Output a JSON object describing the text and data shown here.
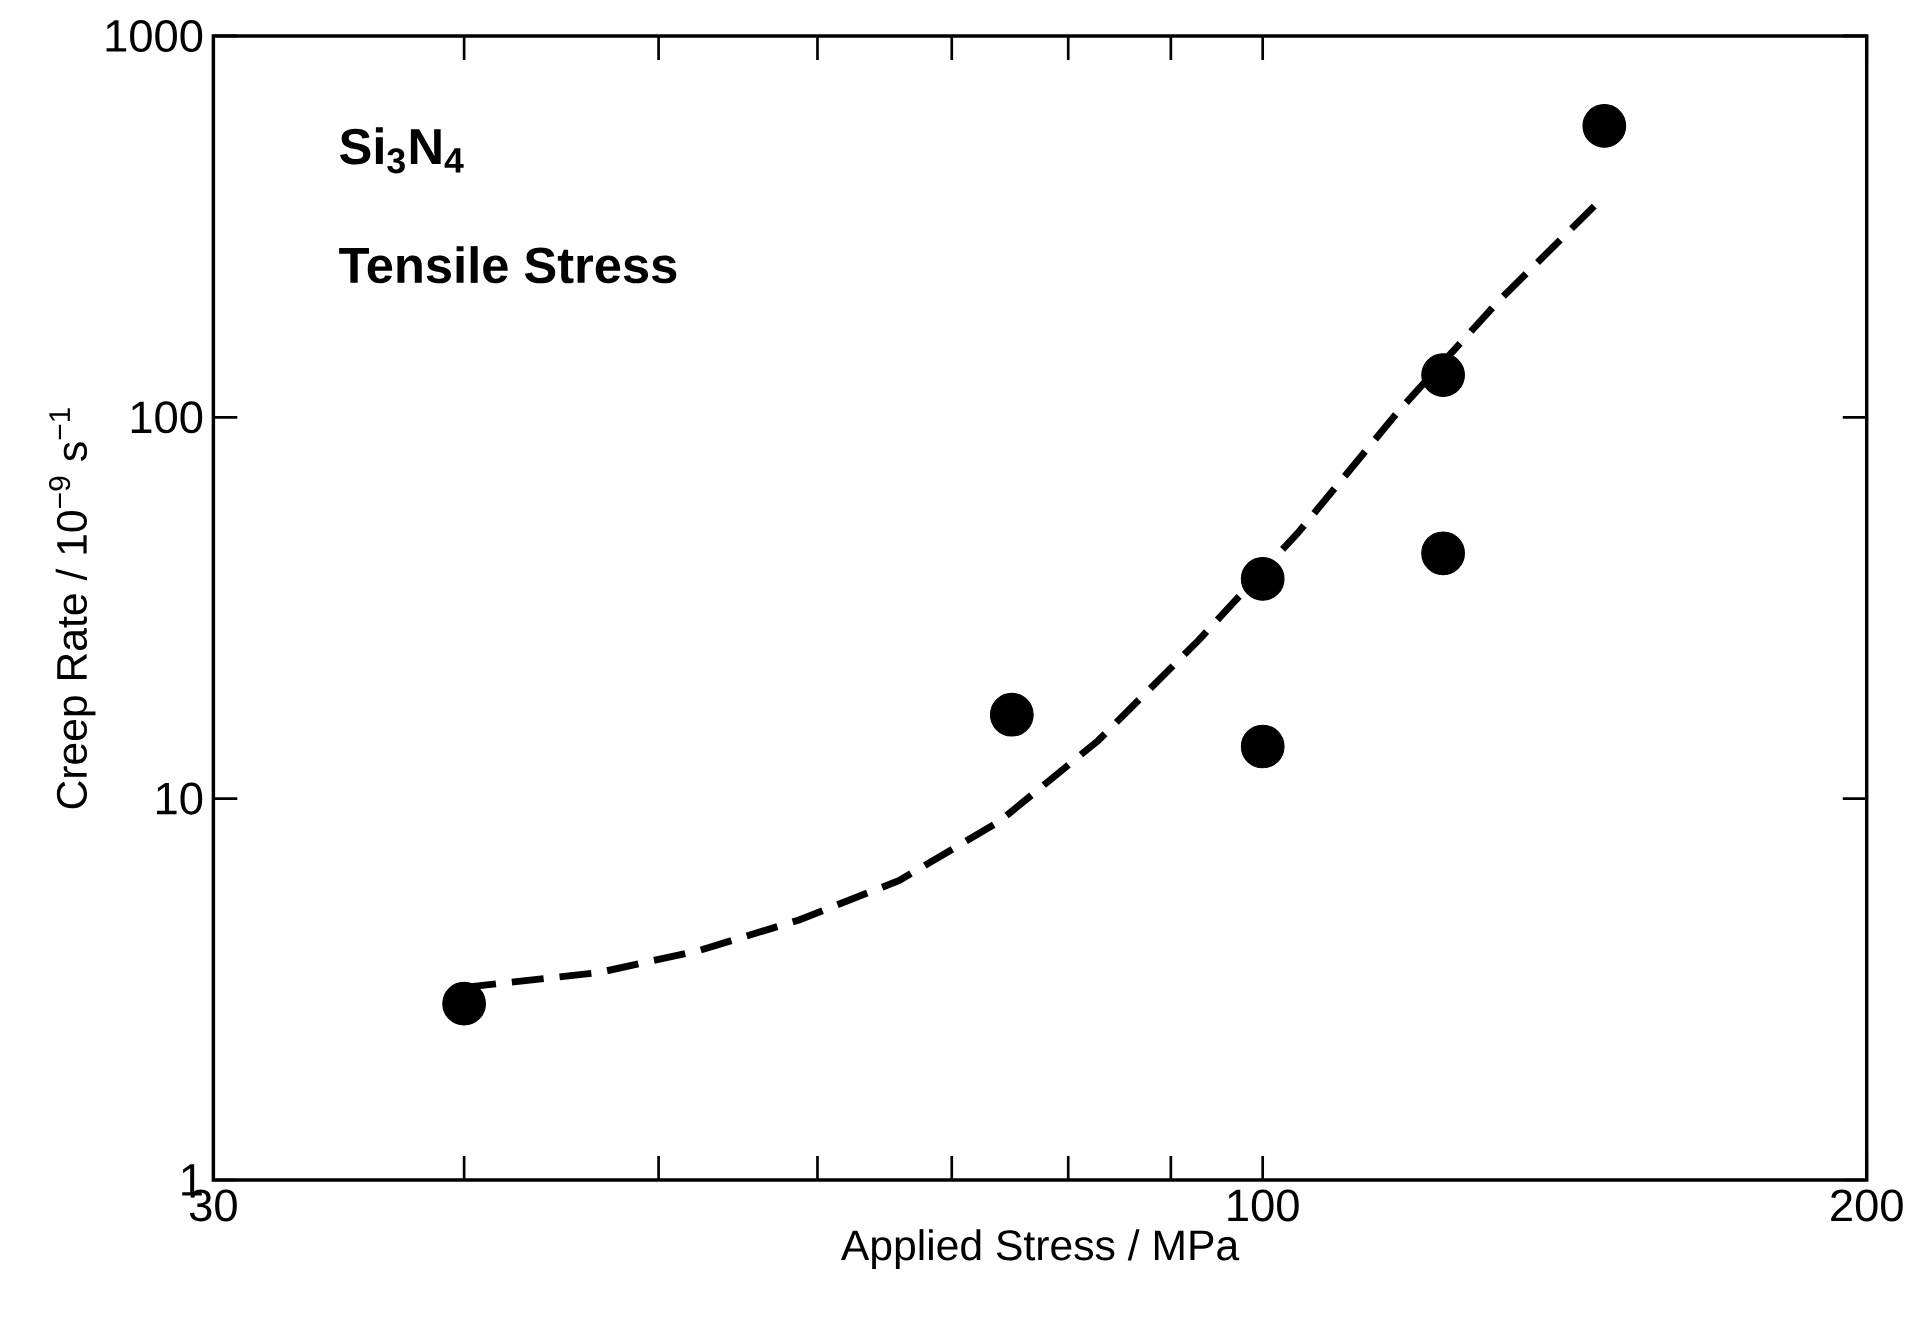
{
  "chart_data": {
    "type": "scatter",
    "xlabel": "Applied Stress / MPa",
    "ylabel": "Creep Rate / 10$^{−9}$ s$^{−1}$",
    "annotations": [
      "**Si$_{3}$N$_{4}$**",
      "**Tensile Stress**"
    ],
    "log": "xy",
    "xlim": [
      30,
      200
    ],
    "ylim": [
      1,
      1000
    ],
    "xticks": [
      30,
      {
        "value": 40,
        "label": null
      },
      {
        "value": 50,
        "label": null
      },
      {
        "value": 60,
        "label": null
      },
      {
        "value": 70,
        "label": null
      },
      {
        "value": 80,
        "label": null
      },
      {
        "value": 90,
        "label": null
      },
      100,
      200
    ],
    "yticks": [
      1,
      10,
      100,
      1000
    ],
    "grid": false,
    "series": [
      {
        "type": "scatter",
        "color": "#000000",
        "marker": "circle",
        "x": [
          40,
          75,
          100,
          100,
          123,
          123,
          148
        ],
        "values": [
          2.9,
          16.6,
          37.7,
          13.7,
          129,
          44,
          581
        ]
      },
      {
        "type": "line",
        "color": "#000000",
        "marker": "none",
        "line_style": "dashed",
        "x": [
          40,
          46.7,
          52.4,
          58.7,
          65.9,
          73.9,
          82.8,
          92.9,
          104.2,
          116.9,
          131,
          147
        ],
        "values": [
          3.2,
          3.5,
          4.0,
          4.8,
          6.1,
          8.7,
          14.2,
          26,
          50,
          104,
          201,
          367
        ]
      }
    ]
  }
}
